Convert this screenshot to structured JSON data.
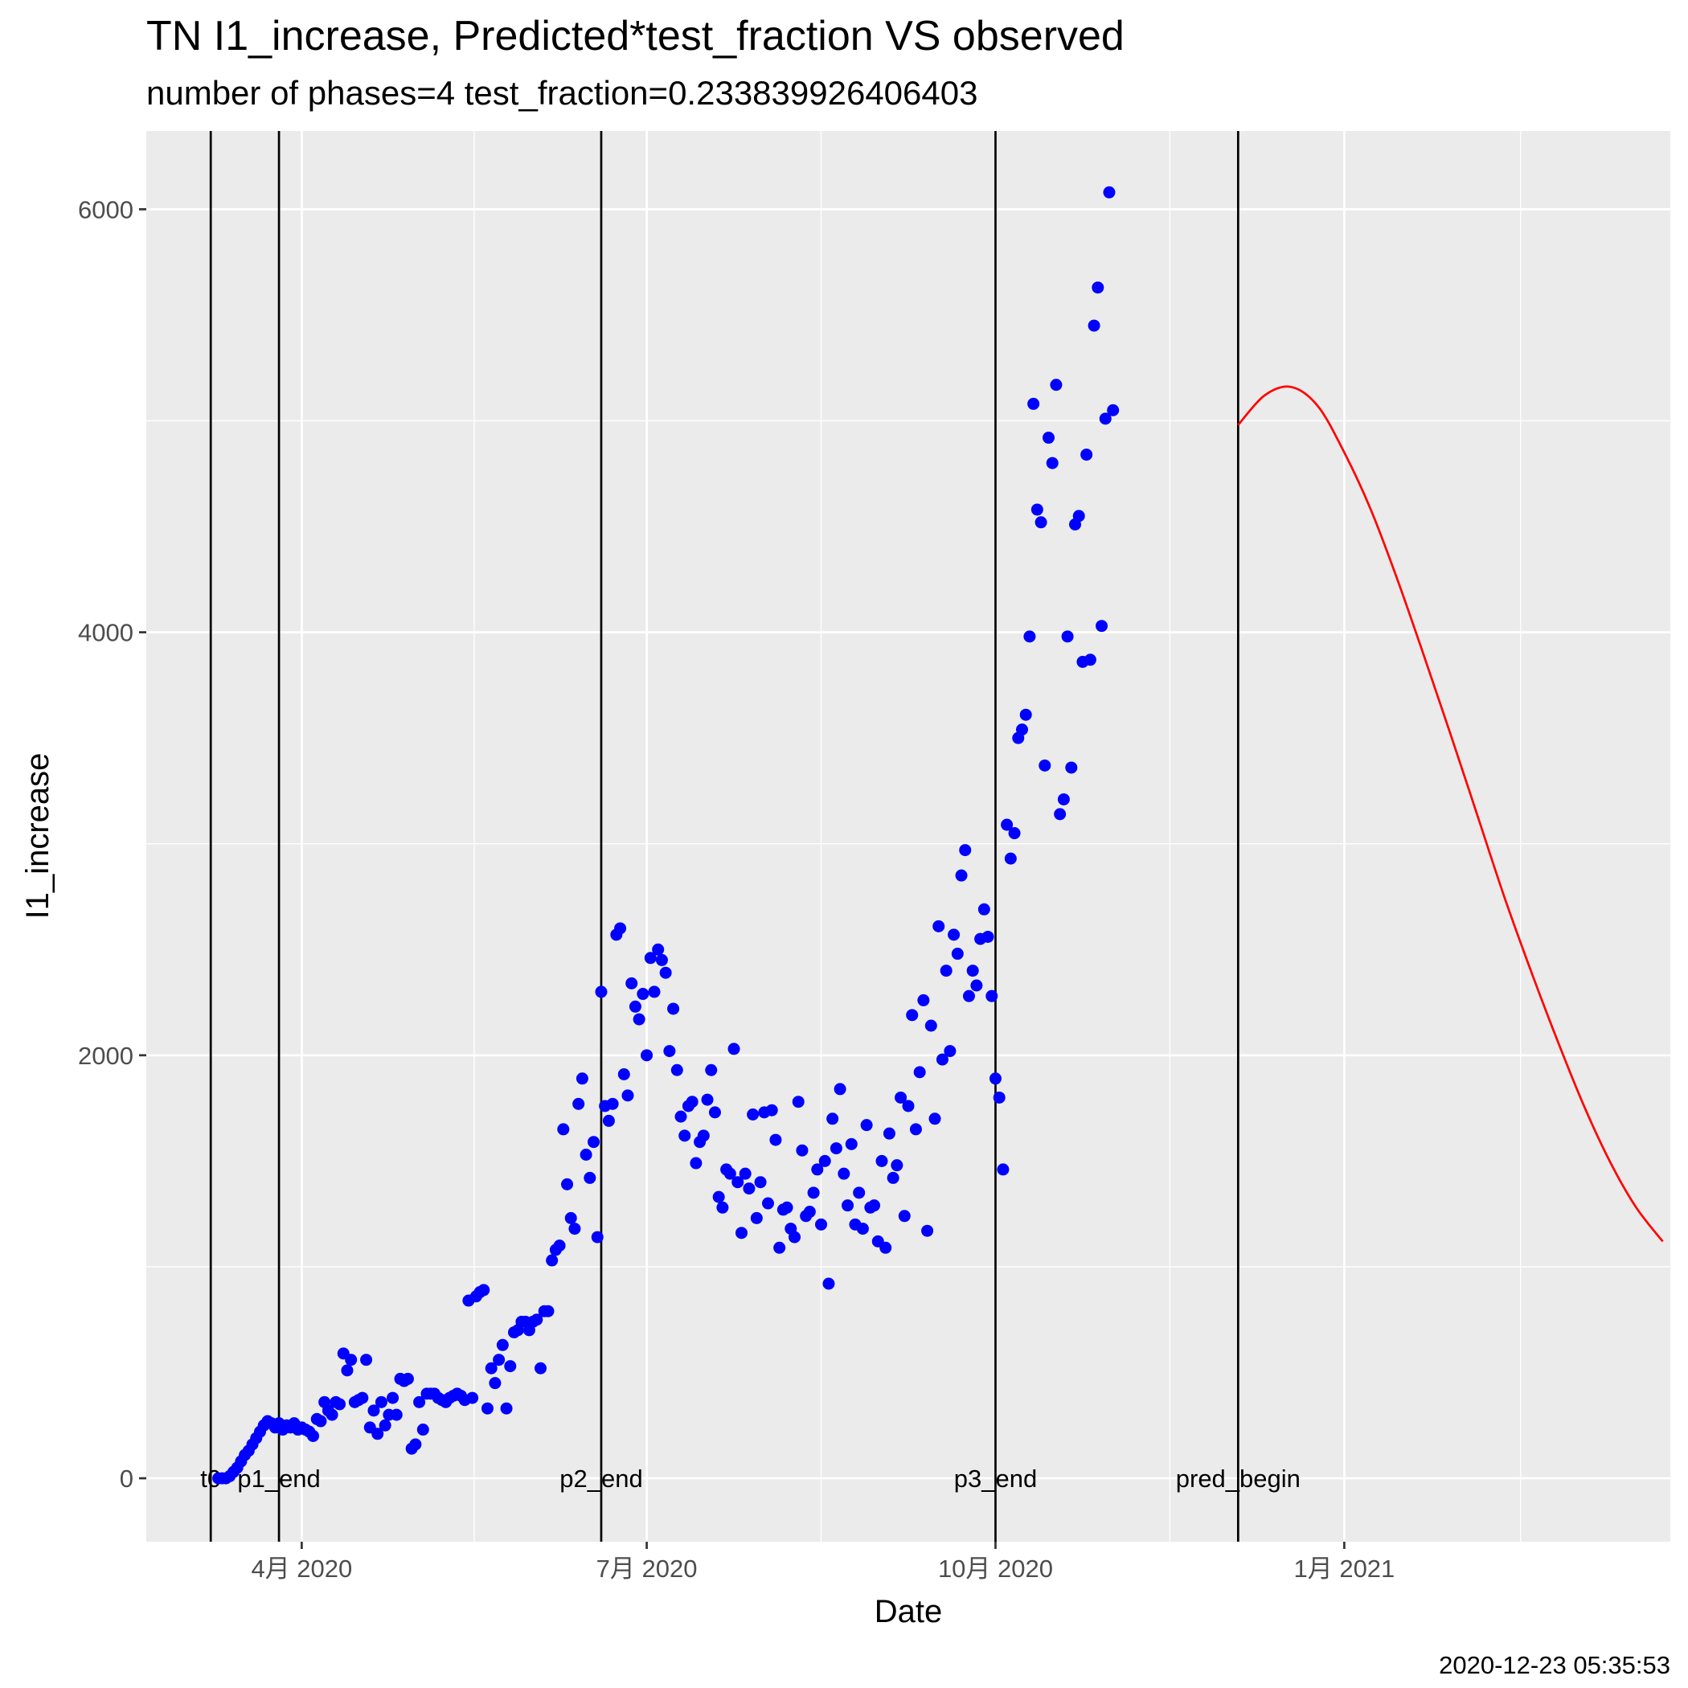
{
  "chart_data": {
    "type": "scatter",
    "title": "TN I1_increase, Predicted*test_fraction VS observed",
    "subtitle": "number of phases=4   test_fraction=0.233839926406403",
    "caption": "2020-12-23 05:35:53",
    "xlabel": "Date",
    "ylabel": "I1_increase",
    "xlim": [
      "2020-02-20",
      "2021-03-28"
    ],
    "ylim": [
      -300,
      6370
    ],
    "y_ticks": [
      0,
      2000,
      4000,
      6000
    ],
    "x_ticks": [
      {
        "date": "2020-04-01",
        "label": "4月 2020"
      },
      {
        "date": "2020-07-01",
        "label": "7月 2020"
      },
      {
        "date": "2020-10-01",
        "label": "10月 2020"
      },
      {
        "date": "2021-01-01",
        "label": "1月 2021"
      }
    ],
    "grid": true,
    "colors": {
      "observed": "#0000ff",
      "predicted": "#ff0000",
      "panel": "#ebebeb",
      "vlines": "#000000"
    },
    "vlines": [
      {
        "date": "2020-03-08",
        "label": "t0"
      },
      {
        "date": "2020-03-26",
        "label": "p1_end"
      },
      {
        "date": "2020-06-19",
        "label": "p2_end"
      },
      {
        "date": "2020-10-01",
        "label": "p3_end"
      },
      {
        "date": "2020-12-04",
        "label": "pred_begin"
      }
    ],
    "series": [
      {
        "type": "scatter",
        "start_date": "2020-03-10",
        "values": [
          0,
          0,
          0,
          10,
          30,
          50,
          80,
          110,
          130,
          160,
          190,
          220,
          250,
          270,
          260,
          240,
          260,
          230,
          250,
          240,
          260,
          230,
          240,
          230,
          220,
          200,
          280,
          270,
          360,
          320,
          300,
          360,
          350,
          590,
          510,
          560,
          360,
          370,
          380,
          560,
          240,
          320,
          210,
          360,
          250,
          300,
          380,
          300,
          470,
          460,
          470,
          140,
          160,
          360,
          230,
          400,
          400,
          400,
          380,
          370,
          360,
          380,
          390,
          400,
          390,
          370,
          840,
          380,
          860,
          880,
          890,
          330,
          520,
          450,
          560,
          630,
          330,
          530,
          690,
          700,
          740,
          740,
          700,
          740,
          750,
          520,
          790,
          790,
          1030,
          1080,
          1100,
          1650,
          1390,
          1230,
          1180,
          1770,
          1890,
          1530,
          1420,
          1590,
          1140,
          2300,
          1760,
          1690,
          1770,
          2570,
          2600,
          1910,
          1810,
          2340,
          2230,
          2170,
          2290,
          2000,
          2460,
          2300,
          2500,
          2450,
          2390,
          2020,
          2220,
          1930,
          1710,
          1620,
          1760,
          1780,
          1490,
          1590,
          1620,
          1790,
          1930,
          1730,
          1330,
          1280,
          1460,
          1440,
          2030,
          1400,
          1160,
          1440,
          1370,
          1720,
          1230,
          1400,
          1730,
          1300,
          1740,
          1600,
          1090,
          1270,
          1280,
          1180,
          1140,
          1780,
          1550,
          1240,
          1260,
          1350,
          1460,
          1200,
          1500,
          920,
          1700,
          1560,
          1840,
          1440,
          1290,
          1580,
          1200,
          1350,
          1180,
          1670,
          1280,
          1290,
          1120,
          1500,
          1090,
          1630,
          1420,
          1480,
          1800,
          1240,
          1760,
          2190,
          1650,
          1920,
          2260,
          1170,
          2140,
          1700,
          2610,
          1980,
          2400,
          2020,
          2570,
          2480,
          2850,
          2970,
          2280,
          2400,
          2330,
          2550,
          2690,
          2560,
          2280,
          1890,
          1800,
          1460,
          3090,
          2930,
          3050,
          3500,
          3540,
          3610,
          3980,
          5080,
          4580,
          4520,
          3370,
          4920,
          4800,
          5170,
          3140,
          3210,
          3980,
          3360,
          4510,
          4550,
          3860,
          4840,
          3870,
          5450,
          5630,
          4030,
          5010,
          6080,
          5050
        ]
      },
      {
        "type": "line",
        "start_date": "2020-12-04",
        "step_days": 7,
        "values": [
          4980,
          5120,
          5160,
          5070,
          4850,
          4580,
          4250,
          3890,
          3520,
          3140,
          2760,
          2410,
          2080,
          1770,
          1500,
          1280,
          1120
        ]
      }
    ]
  }
}
